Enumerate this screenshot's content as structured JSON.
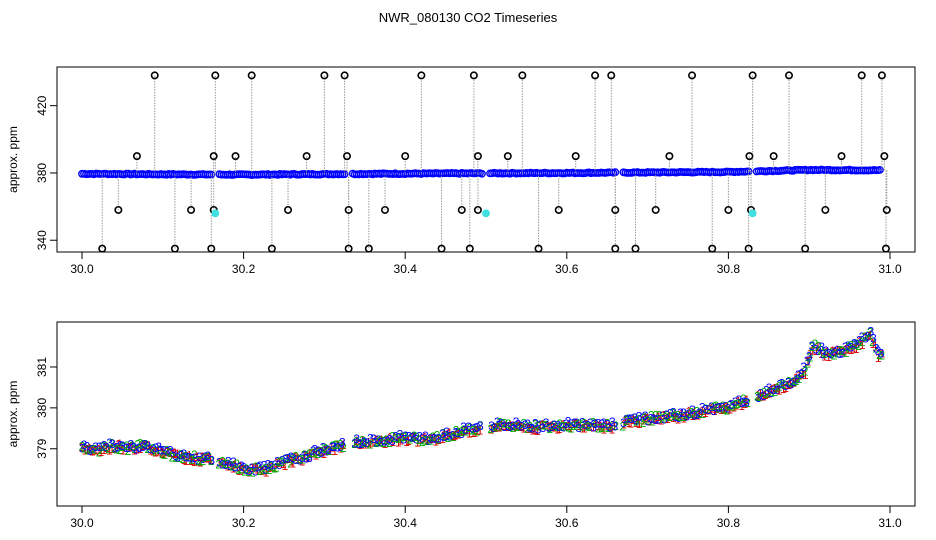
{
  "title": "NWR_080130  CO2 Timeseries",
  "colors": {
    "frame": "#000000",
    "circle": "#000000",
    "dots": "#0000ff",
    "highlight": "#40e0e0",
    "stem": "#9a9a9a",
    "label1": "#dd0000",
    "label2": "#00aa00",
    "label3": "#0000ff"
  },
  "chart_data": [
    {
      "type": "scatter",
      "ylabel": "approx. ppm",
      "xlim": [
        30.0,
        31.0
      ],
      "ylim": [
        333,
        443
      ],
      "x_ticks": [
        "30.0",
        "30.2",
        "30.4",
        "30.6",
        "30.8",
        "31.0"
      ],
      "y_ticks": [
        "340",
        "380",
        "420"
      ],
      "baseline": [
        [
          30.0,
          379.5
        ],
        [
          30.1,
          379.2
        ],
        [
          30.2,
          379.0
        ],
        [
          30.3,
          379.3
        ],
        [
          30.4,
          379.6
        ],
        [
          30.5,
          379.8
        ],
        [
          30.6,
          380.0
        ],
        [
          30.7,
          380.3
        ],
        [
          30.8,
          380.6
        ],
        [
          30.9,
          381.8
        ],
        [
          30.99,
          381.6
        ]
      ],
      "segment_breaks": [
        30.165,
        30.33,
        30.5,
        30.665,
        30.83
      ],
      "spikes_high": [
        30.09,
        30.165,
        30.21,
        30.3,
        30.325,
        30.42,
        30.485,
        30.545,
        30.635,
        30.655,
        30.755,
        30.83,
        30.875,
        30.965,
        30.99
      ],
      "spikes_low": [
        30.025,
        30.115,
        30.16,
        30.235,
        30.33,
        30.355,
        30.445,
        30.48,
        30.565,
        30.66,
        30.685,
        30.78,
        30.825,
        30.895,
        30.995
      ],
      "spikes_mid_up": [
        30.068,
        30.163,
        30.19,
        30.278,
        30.328,
        30.4,
        30.49,
        30.527,
        30.611,
        30.727,
        30.826,
        30.856,
        30.94,
        30.993
      ],
      "spikes_mid_down": [
        30.045,
        30.135,
        30.163,
        30.255,
        30.33,
        30.375,
        30.47,
        30.49,
        30.59,
        30.66,
        30.71,
        30.8,
        30.828,
        30.92,
        30.996
      ],
      "spike_levels": {
        "high": 438,
        "low": 335,
        "mid_up": 390,
        "mid_down": 358
      },
      "highlights": [
        [
          30.165,
          356
        ],
        [
          30.5,
          356
        ],
        [
          30.83,
          356
        ]
      ]
    },
    {
      "type": "scatter",
      "ylabel": "approx. ppm",
      "xlim": [
        30.0,
        31.0
      ],
      "ylim": [
        377.6,
        382.1
      ],
      "x_ticks": [
        "30.0",
        "30.2",
        "30.4",
        "30.6",
        "30.8",
        "31.0"
      ],
      "y_ticks": [
        "379",
        "380",
        "381"
      ],
      "x": [
        30.0,
        30.02,
        30.04,
        30.06,
        30.08,
        30.1,
        30.12,
        30.14,
        30.16,
        30.18,
        30.2,
        30.21,
        30.23,
        30.25,
        30.28,
        30.3,
        30.32,
        30.34,
        30.36,
        30.38,
        30.4,
        30.42,
        30.44,
        30.46,
        30.48,
        30.5,
        30.52,
        30.54,
        30.56,
        30.58,
        30.6,
        30.62,
        30.64,
        30.66,
        30.68,
        30.7,
        30.72,
        30.74,
        30.76,
        30.78,
        30.8,
        30.82,
        30.84,
        30.86,
        30.88,
        30.895,
        30.905,
        30.92,
        30.94,
        30.96,
        30.975,
        30.985
      ],
      "y": [
        379.0,
        378.95,
        379.05,
        379.0,
        379.05,
        378.9,
        378.8,
        378.75,
        378.7,
        378.6,
        378.5,
        378.45,
        378.5,
        378.65,
        378.8,
        378.95,
        379.05,
        379.15,
        379.15,
        379.2,
        379.25,
        379.2,
        379.25,
        379.35,
        379.45,
        379.5,
        379.55,
        379.55,
        379.5,
        379.55,
        379.55,
        379.55,
        379.55,
        379.55,
        379.65,
        379.7,
        379.75,
        379.8,
        379.85,
        379.95,
        380.0,
        380.15,
        380.3,
        380.45,
        380.6,
        380.9,
        381.5,
        381.3,
        381.35,
        381.5,
        381.8,
        381.3
      ],
      "labels": [
        "1",
        "2",
        "3"
      ]
    }
  ]
}
